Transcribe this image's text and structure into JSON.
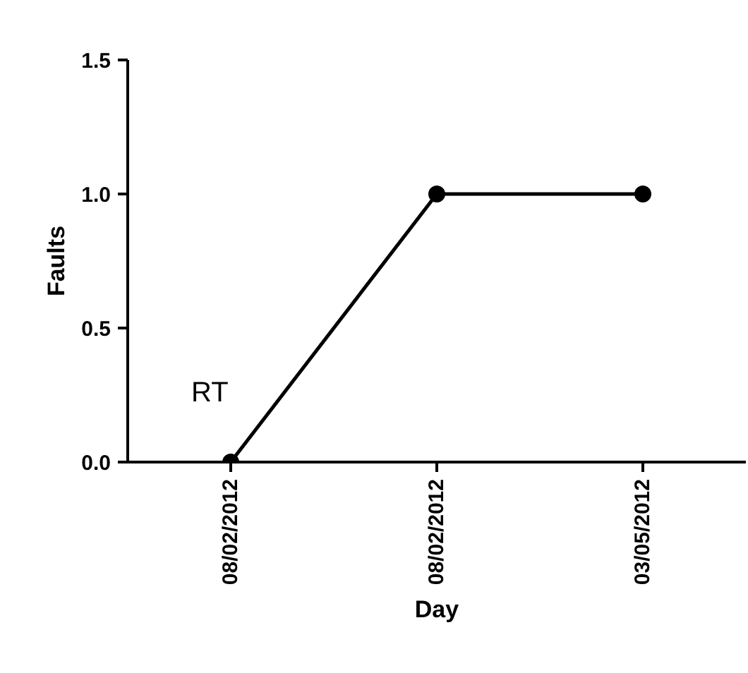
{
  "chart_data": {
    "type": "line",
    "xlabel": "Day",
    "ylabel": "Faults",
    "categories": [
      "08/02/2012",
      "08/02/2012",
      "03/05/2012"
    ],
    "series": [
      {
        "color": "#000000",
        "values": [
          0,
          1,
          1
        ]
      }
    ],
    "ylim": [
      0,
      1.5
    ],
    "yticks": [
      {
        "value": 0,
        "label": "0.0"
      },
      {
        "value": 0.5,
        "label": "0.5"
      },
      {
        "value": 1,
        "label": "1.0"
      },
      {
        "value": 1.5,
        "label": "1.5"
      }
    ],
    "annotations": [
      "RT"
    ],
    "grid": false,
    "marker": "circle",
    "line_style": "solid"
  }
}
